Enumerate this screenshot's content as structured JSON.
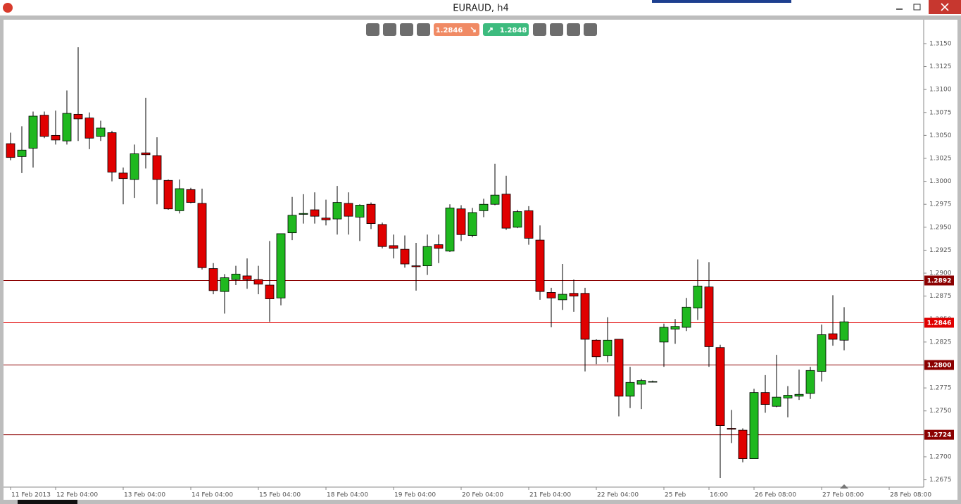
{
  "window_title": "EURAUD, h4",
  "toolbar": {
    "sell": 1.2846,
    "buy": 1.2848
  },
  "chart_data": {
    "type": "candlestick",
    "categories": [
      "11 Feb 2013",
      null,
      null,
      null,
      "12 Feb 04:00",
      null,
      null,
      null,
      null,
      null,
      "13 Feb 04:00",
      null,
      null,
      null,
      null,
      null,
      "14 Feb 04:00",
      null,
      null,
      null,
      null,
      null,
      "15 Feb 04:00",
      null,
      null,
      null,
      null,
      null,
      "18 Feb 04:00",
      null,
      null,
      null,
      null,
      null,
      "19 Feb 04:00",
      null,
      null,
      null,
      null,
      null,
      "20 Feb 04:00",
      null,
      null,
      null,
      null,
      null,
      "21 Feb 04:00",
      null,
      null,
      null,
      null,
      null,
      "22 Feb 04:00",
      null,
      null,
      null,
      null,
      null,
      "25 Feb",
      null,
      null,
      null,
      "16:00",
      null,
      null,
      null,
      "26 Feb 08:00",
      null,
      null,
      null,
      null,
      null,
      "27 Feb 08:00",
      null,
      null,
      null,
      null,
      null,
      "28 Feb 08:00"
    ],
    "open": [
      1.3041,
      1.3027,
      1.3036,
      1.3072,
      1.305,
      1.3044,
      1.3073,
      1.3069,
      1.3049,
      1.3053,
      1.3009,
      1.3002,
      1.3031,
      1.3028,
      1.3001,
      1.2968,
      1.2991,
      1.2976,
      1.2905,
      1.288,
      1.2893,
      1.2897,
      1.2893,
      1.2887,
      1.2873,
      1.2944,
      1.2964,
      1.2969,
      1.296,
      1.2959,
      1.2976,
      1.2961,
      1.2975,
      1.2953,
      1.293,
      1.2926,
      1.2908,
      1.2908,
      1.2931,
      1.2924,
      1.297,
      1.2941,
      1.2968,
      1.2975,
      1.2986,
      1.295,
      1.2968,
      1.2936,
      1.2879,
      1.2871,
      1.2878,
      1.2878,
      1.2827,
      1.281,
      1.2828,
      1.2766,
      1.2779,
      1.2782,
      1.2825,
      1.2839,
      1.2841,
      1.2862,
      1.2885,
      1.2819,
      1.2731,
      1.2729,
      1.2698,
      1.277,
      1.2755,
      1.2764,
      1.2766,
      1.2769,
      1.2793,
      1.2834,
      1.2827,
      null,
      null,
      null,
      null
    ],
    "high": [
      1.3053,
      1.306,
      1.3076,
      1.3076,
      1.3077,
      1.3099,
      1.3146,
      1.3075,
      1.3066,
      1.3055,
      1.3015,
      1.304,
      1.3091,
      1.3048,
      1.3002,
      1.3002,
      1.2993,
      1.2992,
      1.2911,
      1.2899,
      1.2908,
      1.2916,
      1.2908,
      1.2935,
      1.2943,
      1.2983,
      1.2986,
      1.2988,
      1.298,
      1.2995,
      1.2988,
      1.2975,
      1.2977,
      1.2955,
      1.2942,
      1.2941,
      1.2933,
      1.2942,
      1.2942,
      1.2975,
      1.2974,
      1.2971,
      1.2981,
      1.3019,
      1.3006,
      1.2969,
      1.2973,
      1.2952,
      1.2884,
      1.291,
      1.2893,
      1.2884,
      1.2828,
      1.2852,
      1.2828,
      1.2798,
      1.2785,
      1.2783,
      1.2845,
      1.285,
      1.2873,
      1.2915,
      1.2912,
      1.2822,
      1.2751,
      1.2731,
      1.2774,
      1.2789,
      1.2811,
      1.2777,
      1.2795,
      1.2798,
      1.2844,
      1.2876,
      1.2863,
      null,
      null,
      null,
      null
    ],
    "low": [
      1.3023,
      1.3009,
      1.3015,
      1.3047,
      1.304,
      1.304,
      1.3044,
      1.3035,
      1.3044,
      1.3,
      1.2975,
      1.2982,
      1.3014,
      1.2975,
      1.2969,
      1.2965,
      1.2976,
      1.2904,
      1.2877,
      1.2856,
      1.2887,
      1.2883,
      1.2877,
      1.2847,
      1.2865,
      1.2936,
      1.2954,
      1.2954,
      1.2952,
      1.2942,
      1.2942,
      1.2935,
      1.2948,
      1.2927,
      1.2916,
      1.2906,
      1.2881,
      1.2898,
      1.2911,
      1.2923,
      1.2935,
      1.2939,
      1.2961,
      1.2974,
      1.2947,
      1.2949,
      1.2931,
      1.2871,
      1.2841,
      1.286,
      1.2858,
      1.2793,
      1.2801,
      1.2803,
      1.2744,
      1.2753,
      1.2752,
      1.2781,
      1.2798,
      1.2823,
      1.2837,
      1.2849,
      1.2798,
      1.2677,
      1.2715,
      1.2694,
      1.2698,
      1.2748,
      1.2754,
      1.2743,
      1.2762,
      1.2763,
      1.2782,
      1.2821,
      1.2816,
      null,
      null,
      null,
      null
    ],
    "close": [
      1.3026,
      1.3034,
      1.3071,
      1.3049,
      1.3045,
      1.3074,
      1.3068,
      1.3047,
      1.3058,
      1.301,
      1.3003,
      1.303,
      1.3029,
      1.3002,
      1.297,
      1.2992,
      1.2977,
      1.2906,
      1.2881,
      1.2895,
      1.2899,
      1.2893,
      1.2888,
      1.2872,
      1.2943,
      1.2963,
      1.2965,
      1.2962,
      1.2958,
      1.2977,
      1.2962,
      1.2974,
      1.2954,
      1.2929,
      1.2927,
      1.291,
      1.2907,
      1.2929,
      1.2927,
      1.2971,
      1.2942,
      1.2966,
      1.2975,
      1.2985,
      1.2949,
      1.2967,
      1.2938,
      1.288,
      1.2873,
      1.2877,
      1.2875,
      1.2828,
      1.2809,
      1.2827,
      1.2766,
      1.2781,
      1.2783,
      1.2782,
      1.2841,
      1.2842,
      1.2863,
      1.2886,
      1.282,
      1.2734,
      1.273,
      1.2698,
      1.277,
      1.2757,
      1.2765,
      1.2767,
      1.2768,
      1.2794,
      1.2833,
      1.2828,
      1.2847,
      null,
      null,
      null,
      null
    ],
    "up_color": "#1fb81f",
    "down_color": "#e00000",
    "ylim": [
      1.2667,
      1.3176
    ],
    "yticks": [
      1.2675,
      {
        "value": 1.27,
        "label": "1.2700"
      },
      1.2725,
      {
        "value": 1.275,
        "label": "1.2750"
      },
      1.2775,
      {
        "value": 1.28,
        "label": "1.2800"
      },
      1.2825,
      {
        "value": 1.285,
        "label": "1.2850"
      },
      1.2875,
      {
        "value": 1.29,
        "label": "1.2900"
      },
      1.2925,
      {
        "value": 1.295,
        "label": "1.2950"
      },
      1.2975,
      {
        "value": 1.3,
        "label": "1.3000"
      },
      1.3025,
      {
        "value": 1.305,
        "label": "1.3050"
      },
      1.3075,
      {
        "value": 1.31,
        "label": "1.3100"
      },
      1.3125,
      {
        "value": 1.315,
        "label": "1.3150"
      }
    ],
    "levels": [
      1.2892,
      1.2846,
      {
        "value": 1.28,
        "label": "1.2800"
      },
      1.2724
    ],
    "level_colors": [
      "#8b0000",
      "#e00000",
      "#8b0000",
      "#8b0000"
    ]
  }
}
